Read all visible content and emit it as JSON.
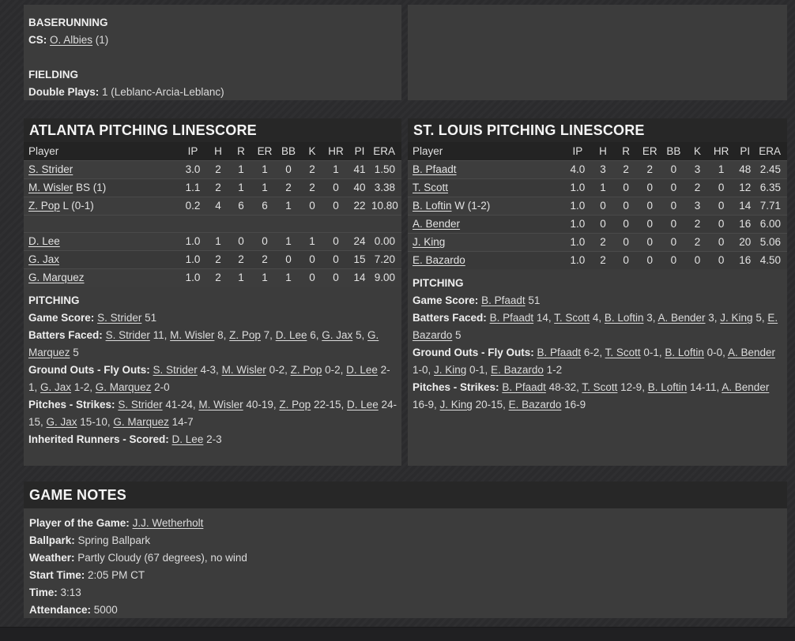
{
  "colors": {
    "page_background": "#2c2c2e",
    "panel_background": "#3c3c3c",
    "section_header_background": "#272727",
    "table_header_background": "#232323",
    "row_separator": "#4a4a4a",
    "text": "#e2e2e2"
  },
  "top_left": {
    "sections": [
      {
        "title": "BASERUNNING",
        "lines": [
          {
            "label": "CS:",
            "segments": [
              {
                "t": "link",
                "v": "O. Albies"
              },
              {
                "t": "text",
                "v": " (1)"
              }
            ]
          }
        ]
      },
      {
        "title": "FIELDING",
        "lines": [
          {
            "label": "Double Plays:",
            "segments": [
              {
                "t": "text",
                "v": "1 (Leblanc-Arcia-Leblanc)"
              }
            ]
          }
        ]
      }
    ]
  },
  "linescores": [
    {
      "title": "ATLANTA PITCHING LINESCORE",
      "columns": [
        "Player",
        "IP",
        "H",
        "R",
        "ER",
        "BB",
        "K",
        "HR",
        "PI",
        "ERA"
      ],
      "rows": [
        {
          "player": "S. Strider",
          "suffix": "",
          "stats": [
            "3.0",
            "2",
            "1",
            "1",
            "0",
            "2",
            "1",
            "41",
            "1.50"
          ]
        },
        {
          "player": "M. Wisler",
          "suffix": " BS (1)",
          "stats": [
            "1.1",
            "2",
            "1",
            "1",
            "2",
            "2",
            "0",
            "40",
            "3.38"
          ]
        },
        {
          "player": "Z. Pop",
          "suffix": " L (0-1)",
          "stats": [
            "0.2",
            "4",
            "6",
            "6",
            "1",
            "0",
            "0",
            "22",
            "10.80"
          ]
        },
        {
          "blank": true
        },
        {
          "player": "D. Lee",
          "suffix": "",
          "stats": [
            "1.0",
            "1",
            "0",
            "0",
            "1",
            "1",
            "0",
            "24",
            "0.00"
          ]
        },
        {
          "player": "G. Jax",
          "suffix": "",
          "stats": [
            "1.0",
            "2",
            "2",
            "2",
            "0",
            "0",
            "0",
            "15",
            "7.20"
          ]
        },
        {
          "player": "G. Marquez",
          "suffix": "",
          "stats": [
            "1.0",
            "2",
            "1",
            "1",
            "1",
            "0",
            "0",
            "14",
            "9.00"
          ]
        }
      ],
      "notes_title": "PITCHING",
      "notes": [
        {
          "label": "Game Score:",
          "segments": [
            {
              "t": "link",
              "v": "S. Strider"
            },
            {
              "t": "text",
              "v": " 51"
            }
          ]
        },
        {
          "label": "Batters Faced:",
          "segments": [
            {
              "t": "link",
              "v": "S. Strider"
            },
            {
              "t": "text",
              "v": " 11, "
            },
            {
              "t": "link",
              "v": "M. Wisler"
            },
            {
              "t": "text",
              "v": " 8, "
            },
            {
              "t": "link",
              "v": "Z. Pop"
            },
            {
              "t": "text",
              "v": " 7, "
            },
            {
              "t": "link",
              "v": "D. Lee"
            },
            {
              "t": "text",
              "v": " 6, "
            },
            {
              "t": "link",
              "v": "G. Jax"
            },
            {
              "t": "text",
              "v": " 5, "
            },
            {
              "t": "link",
              "v": "G. Marquez"
            },
            {
              "t": "text",
              "v": " 5"
            }
          ]
        },
        {
          "label": "Ground Outs - Fly Outs:",
          "segments": [
            {
              "t": "link",
              "v": "S. Strider"
            },
            {
              "t": "text",
              "v": " 4-3, "
            },
            {
              "t": "link",
              "v": "M. Wisler"
            },
            {
              "t": "text",
              "v": " 0-2, "
            },
            {
              "t": "link",
              "v": "Z. Pop"
            },
            {
              "t": "text",
              "v": " 0-2, "
            },
            {
              "t": "link",
              "v": "D. Lee"
            },
            {
              "t": "text",
              "v": " 2-1, "
            },
            {
              "t": "link",
              "v": "G. Jax"
            },
            {
              "t": "text",
              "v": " 1-2, "
            },
            {
              "t": "link",
              "v": "G. Marquez"
            },
            {
              "t": "text",
              "v": " 2-0"
            }
          ]
        },
        {
          "label": "Pitches - Strikes:",
          "segments": [
            {
              "t": "link",
              "v": "S. Strider"
            },
            {
              "t": "text",
              "v": " 41-24, "
            },
            {
              "t": "link",
              "v": "M. Wisler"
            },
            {
              "t": "text",
              "v": " 40-19, "
            },
            {
              "t": "link",
              "v": "Z. Pop"
            },
            {
              "t": "text",
              "v": " 22-15, "
            },
            {
              "t": "link",
              "v": "D. Lee"
            },
            {
              "t": "text",
              "v": " 24-15, "
            },
            {
              "t": "link",
              "v": "G. Jax"
            },
            {
              "t": "text",
              "v": " 15-10, "
            },
            {
              "t": "link",
              "v": "G. Marquez"
            },
            {
              "t": "text",
              "v": " 14-7"
            }
          ]
        },
        {
          "label": "Inherited Runners - Scored:",
          "segments": [
            {
              "t": "link",
              "v": "D. Lee"
            },
            {
              "t": "text",
              "v": " 2-3"
            }
          ]
        }
      ]
    },
    {
      "title": "ST. LOUIS PITCHING LINESCORE",
      "columns": [
        "Player",
        "IP",
        "H",
        "R",
        "ER",
        "BB",
        "K",
        "HR",
        "PI",
        "ERA"
      ],
      "rows": [
        {
          "player": "B. Pfaadt",
          "suffix": "",
          "stats": [
            "4.0",
            "3",
            "2",
            "2",
            "0",
            "3",
            "1",
            "48",
            "2.45"
          ]
        },
        {
          "player": "T. Scott",
          "suffix": "",
          "stats": [
            "1.0",
            "1",
            "0",
            "0",
            "0",
            "2",
            "0",
            "12",
            "6.35"
          ]
        },
        {
          "player": "B. Loftin",
          "suffix": " W (1-2)",
          "stats": [
            "1.0",
            "0",
            "0",
            "0",
            "0",
            "3",
            "0",
            "14",
            "7.71"
          ]
        },
        {
          "player": "A. Bender",
          "suffix": "",
          "stats": [
            "1.0",
            "0",
            "0",
            "0",
            "0",
            "2",
            "0",
            "16",
            "6.00"
          ]
        },
        {
          "player": "J. King",
          "suffix": "",
          "stats": [
            "1.0",
            "2",
            "0",
            "0",
            "0",
            "2",
            "0",
            "20",
            "5.06"
          ]
        },
        {
          "player": "E. Bazardo",
          "suffix": "",
          "stats": [
            "1.0",
            "2",
            "0",
            "0",
            "0",
            "0",
            "0",
            "16",
            "4.50"
          ]
        }
      ],
      "notes_title": "PITCHING",
      "notes": [
        {
          "label": "Game Score:",
          "segments": [
            {
              "t": "link",
              "v": "B. Pfaadt"
            },
            {
              "t": "text",
              "v": " 51"
            }
          ]
        },
        {
          "label": "Batters Faced:",
          "segments": [
            {
              "t": "link",
              "v": "B. Pfaadt"
            },
            {
              "t": "text",
              "v": " 14, "
            },
            {
              "t": "link",
              "v": "T. Scott"
            },
            {
              "t": "text",
              "v": " 4, "
            },
            {
              "t": "link",
              "v": "B. Loftin"
            },
            {
              "t": "text",
              "v": " 3, "
            },
            {
              "t": "link",
              "v": "A. Bender"
            },
            {
              "t": "text",
              "v": " 3, "
            },
            {
              "t": "link",
              "v": "J. King"
            },
            {
              "t": "text",
              "v": " 5, "
            },
            {
              "t": "link",
              "v": "E. Bazardo"
            },
            {
              "t": "text",
              "v": " 5"
            }
          ]
        },
        {
          "label": "Ground Outs - Fly Outs:",
          "segments": [
            {
              "t": "link",
              "v": "B. Pfaadt"
            },
            {
              "t": "text",
              "v": " 6-2, "
            },
            {
              "t": "link",
              "v": "T. Scott"
            },
            {
              "t": "text",
              "v": " 0-1, "
            },
            {
              "t": "link",
              "v": "B. Loftin"
            },
            {
              "t": "text",
              "v": " 0-0, "
            },
            {
              "t": "link",
              "v": "A. Bender"
            },
            {
              "t": "text",
              "v": " 1-0, "
            },
            {
              "t": "link",
              "v": "J. King"
            },
            {
              "t": "text",
              "v": " 0-1, "
            },
            {
              "t": "link",
              "v": "E. Bazardo"
            },
            {
              "t": "text",
              "v": " 1-2"
            }
          ]
        },
        {
          "label": "Pitches - Strikes:",
          "segments": [
            {
              "t": "link",
              "v": "B. Pfaadt"
            },
            {
              "t": "text",
              "v": " 48-32, "
            },
            {
              "t": "link",
              "v": "T. Scott"
            },
            {
              "t": "text",
              "v": " 12-9, "
            },
            {
              "t": "link",
              "v": "B. Loftin"
            },
            {
              "t": "text",
              "v": " 14-11, "
            },
            {
              "t": "link",
              "v": "A. Bender"
            },
            {
              "t": "text",
              "v": " 16-9, "
            },
            {
              "t": "link",
              "v": "J. King"
            },
            {
              "t": "text",
              "v": " 20-15, "
            },
            {
              "t": "link",
              "v": "E. Bazardo"
            },
            {
              "t": "text",
              "v": " 16-9"
            }
          ]
        }
      ]
    }
  ],
  "game_notes": {
    "title": "GAME NOTES",
    "lines": [
      {
        "label": "Player of the Game:",
        "segments": [
          {
            "t": "link",
            "v": "J.J. Wetherholt"
          }
        ]
      },
      {
        "label": "Ballpark:",
        "segments": [
          {
            "t": "text",
            "v": "Spring Ballpark"
          }
        ]
      },
      {
        "label": "Weather:",
        "segments": [
          {
            "t": "text",
            "v": "Partly Cloudy (67 degrees), no wind"
          }
        ]
      },
      {
        "label": "Start Time:",
        "segments": [
          {
            "t": "text",
            "v": "2:05 PM CT"
          }
        ]
      },
      {
        "label": "Time:",
        "segments": [
          {
            "t": "text",
            "v": "3:13"
          }
        ]
      },
      {
        "label": "Attendance:",
        "segments": [
          {
            "t": "text",
            "v": "5000"
          }
        ]
      }
    ]
  }
}
